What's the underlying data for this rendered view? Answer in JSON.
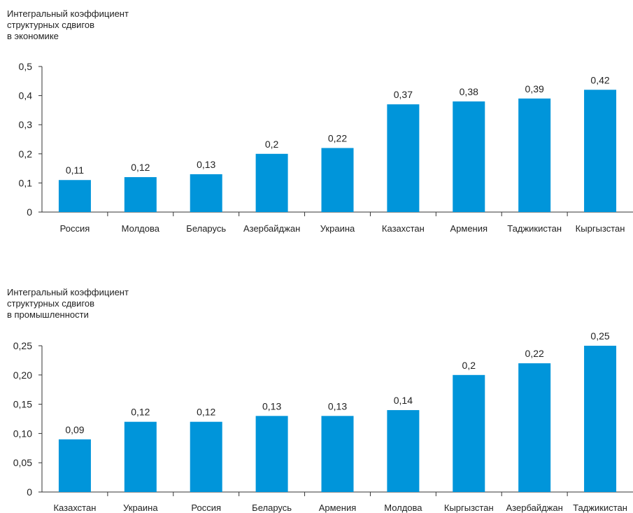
{
  "chart_data": [
    {
      "type": "bar",
      "title": "Интегральный коэффициент\nструктурных сдвигов\nв экономике",
      "categories": [
        "Россия",
        "Молдова",
        "Беларусь",
        "Азербайджан",
        "Украина",
        "Казахстан",
        "Армения",
        "Таджикистан",
        "Кыргызстан"
      ],
      "values": [
        0.11,
        0.12,
        0.13,
        0.2,
        0.22,
        0.37,
        0.38,
        0.39,
        0.42
      ],
      "data_labels": [
        "0,11",
        "0,12",
        "0,13",
        "0,2",
        "0,22",
        "0,37",
        "0,38",
        "0,39",
        "0,42"
      ],
      "ylim": [
        0,
        0.5
      ],
      "yticks": [
        0,
        0.1,
        0.2,
        0.3,
        0.4,
        0.5
      ],
      "ytick_labels": [
        "0",
        "0,1",
        "0,2",
        "0,3",
        "0,4",
        "0,5"
      ],
      "xlabel": "",
      "ylabel": "",
      "grid": false,
      "bar_color": "#0095DA"
    },
    {
      "type": "bar",
      "title": "Интегральный коэффициент\nструктурных сдвигов\nв промышленности",
      "categories": [
        "Казахстан",
        "Украина",
        "Россия",
        "Беларусь",
        "Армения",
        "Молдова",
        "Кыргызстан",
        "Азербайджан",
        "Таджикистан"
      ],
      "values": [
        0.09,
        0.12,
        0.12,
        0.13,
        0.13,
        0.14,
        0.2,
        0.22,
        0.25
      ],
      "data_labels": [
        "0,09",
        "0,12",
        "0,12",
        "0,13",
        "0,13",
        "0,14",
        "0,2",
        "0,22",
        "0,25"
      ],
      "ylim": [
        0,
        0.25
      ],
      "yticks": [
        0,
        0.05,
        0.1,
        0.15,
        0.2,
        0.25
      ],
      "ytick_labels": [
        "0",
        "0,05",
        "0,10",
        "0,15",
        "0,20",
        "0,25"
      ],
      "xlabel": "",
      "ylabel": "",
      "grid": false,
      "bar_color": "#0095DA"
    }
  ]
}
